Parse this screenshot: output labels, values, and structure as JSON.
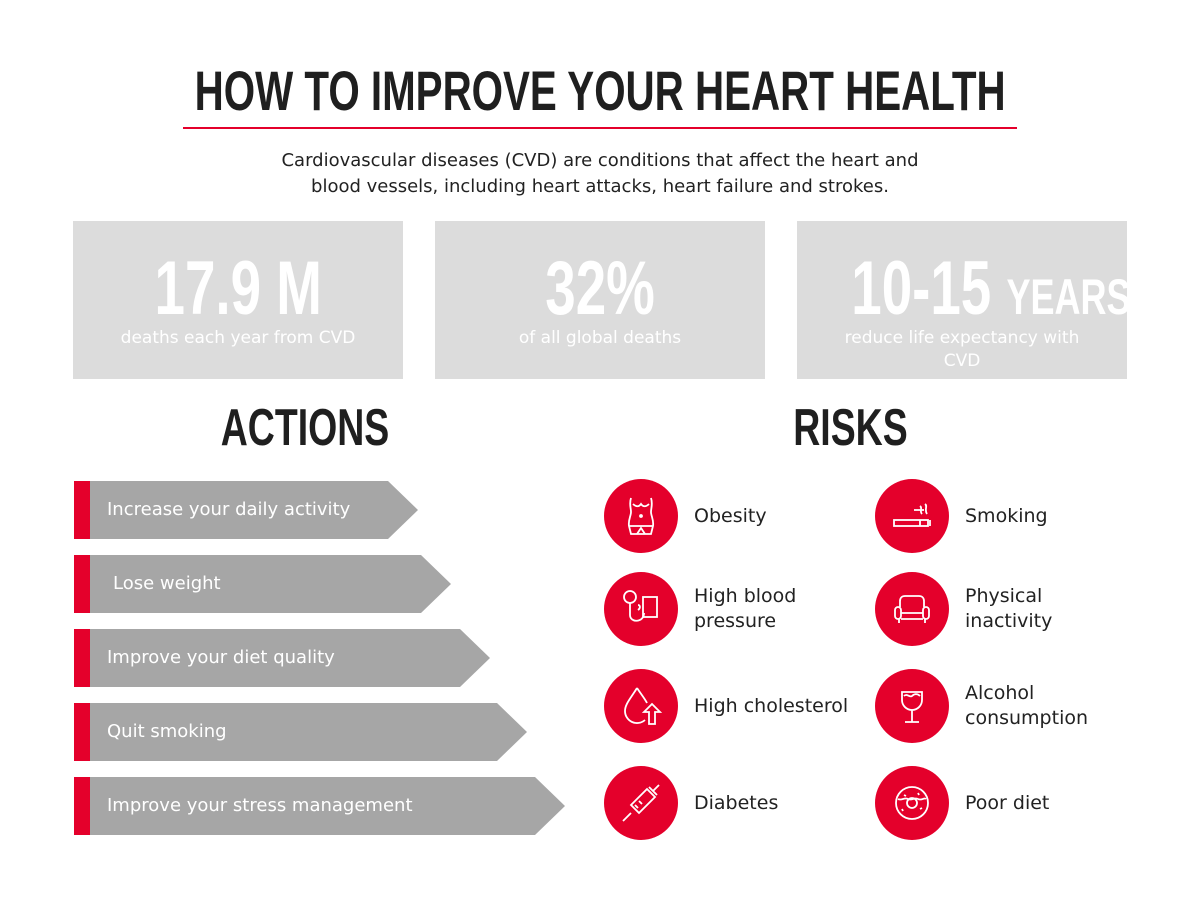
{
  "title": "HOW TO IMPROVE YOUR HEART HEALTH",
  "subtitle_line1": "Cardiovascular diseases (CVD) are conditions that affect the heart and",
  "subtitle_line2": "blood vessels, including heart attacks, heart failure and strokes.",
  "stats": [
    {
      "value": "17.9 M",
      "unit": "",
      "label": "deaths each year from CVD"
    },
    {
      "value": "32%",
      "unit": "",
      "label": "of all global deaths"
    },
    {
      "value": "10-15",
      "unit": "YEARS",
      "label": "reduce life expectancy with CVD"
    }
  ],
  "actions_heading": "ACTIONS",
  "risks_heading": "RISKS",
  "actions": [
    "Increase your daily activity",
    "Lose weight",
    "Improve your diet quality",
    "Quit smoking",
    "Improve your stress management"
  ],
  "risks": [
    {
      "label": "Obesity",
      "icon": "obesity-icon"
    },
    {
      "label": "Smoking",
      "icon": "cigarette-icon"
    },
    {
      "label": "High blood pressure",
      "icon": "blood-pressure-icon"
    },
    {
      "label": "Physical inactivity",
      "icon": "sofa-icon"
    },
    {
      "label": "High cholesterol",
      "icon": "drop-arrow-icon"
    },
    {
      "label": "Alcohol consumption",
      "icon": "wine-glass-icon"
    },
    {
      "label": "Diabetes",
      "icon": "syringe-icon"
    },
    {
      "label": "Poor diet",
      "icon": "donut-icon"
    }
  ],
  "colors": {
    "accent": "#e4002b",
    "arrow": "#a6a6a6",
    "stat_box": "#dcdcdc"
  }
}
